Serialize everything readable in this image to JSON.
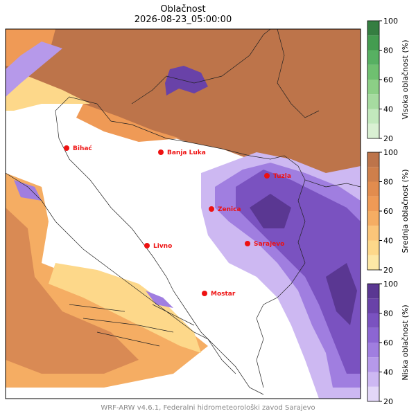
{
  "title": "Oblačnost",
  "subtitle": "2026-08-23_05:00:00",
  "cities": [
    {
      "name": "Bihać"
    },
    {
      "name": "Banja Luka"
    },
    {
      "name": "Tuzla"
    },
    {
      "name": "Zenica"
    },
    {
      "name": "Sarajevo"
    },
    {
      "name": "Livno"
    },
    {
      "name": "Mostar"
    }
  ],
  "colorbars": [
    {
      "label": "Visoka oblačnost (%)",
      "lim": [
        20,
        100
      ],
      "ticks": [
        20,
        40,
        60,
        80,
        100
      ],
      "levels": [
        20,
        30,
        40,
        50,
        60,
        70,
        80,
        90,
        100
      ],
      "colors": [
        "#d9f0d3",
        "#c2e8bd",
        "#a6dba0",
        "#8ccf86",
        "#6fc070",
        "#57b062",
        "#449c50",
        "#357e41"
      ]
    },
    {
      "label": "Srednja oblačnost (%)",
      "lim": [
        20,
        100
      ],
      "ticks": [
        20,
        40,
        60,
        80,
        100
      ],
      "levels": [
        20,
        30,
        40,
        50,
        60,
        70,
        80,
        90,
        100
      ],
      "colors": [
        "#fde8a6",
        "#fdd88a",
        "#fbc579",
        "#f5ad63",
        "#ef9a56",
        "#e28c4e",
        "#cf7f4b",
        "#bd744a"
      ]
    },
    {
      "label": "Niska oblačnost (%)",
      "lim": [
        20,
        100
      ],
      "ticks": [
        20,
        40,
        60,
        80,
        100
      ],
      "levels": [
        20,
        30,
        40,
        50,
        60,
        70,
        80,
        90,
        100
      ],
      "colors": [
        "#e3d7f8",
        "#cdb8f2",
        "#b699ea",
        "#a07ee0",
        "#8c66d3",
        "#7a52c0",
        "#6942a8",
        "#5a3792"
      ]
    }
  ],
  "footer": "WRF-ARW v4.6.1, Federalni hidrometeorološki zavod Sarajevo"
}
